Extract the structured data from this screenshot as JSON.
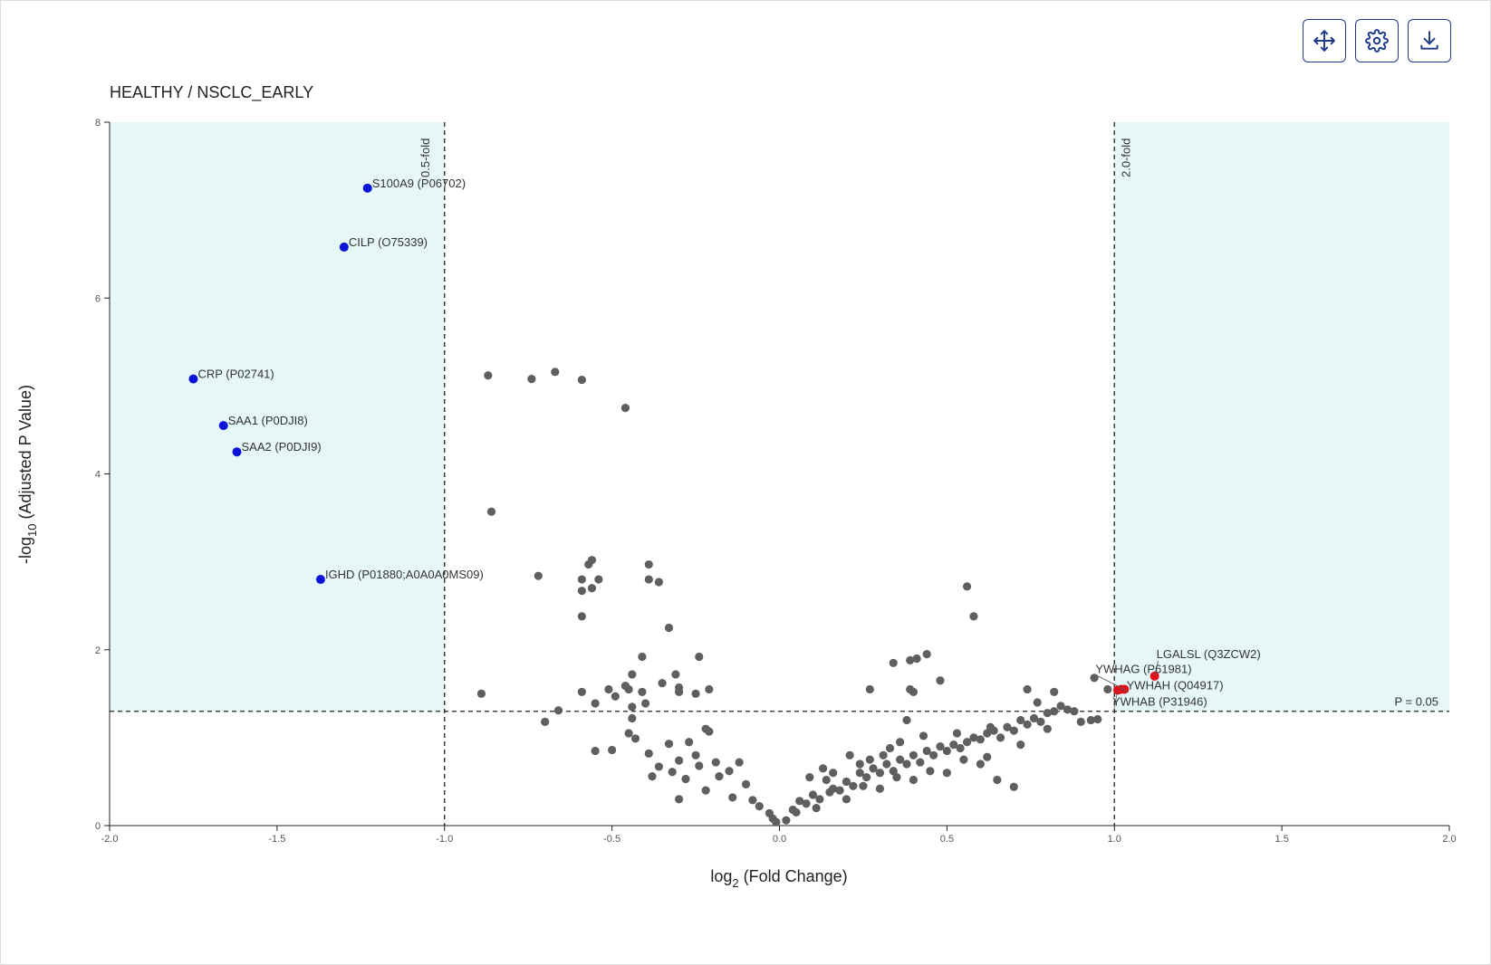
{
  "toolbar": {
    "buttons": [
      {
        "id": "pan",
        "icon": "move-arrows-icon"
      },
      {
        "id": "settings",
        "icon": "gear-icon"
      },
      {
        "id": "download",
        "icon": "download-icon"
      }
    ]
  },
  "colors": {
    "sig_region": "#e6f7f7",
    "grey_point": "#5f5f5f",
    "down_point": "#0a14d8",
    "up_point": "#e3101a"
  },
  "chart_data": {
    "type": "scatter",
    "title": "HEALTHY / NSCLC_EARLY",
    "xlabel_base": "log",
    "xlabel_sub": "2",
    "xlabel_rest": " (Fold Change)",
    "ylabel_base": "-log",
    "ylabel_sub": "10",
    "ylabel_rest": " (Adjusted P Value)",
    "xlim": [
      -2.0,
      2.0
    ],
    "ylim": [
      0,
      8
    ],
    "x_ticks": [
      "-2.0",
      "-1.5",
      "-1.0",
      "-0.5",
      "0.0",
      "0.5",
      "1.0",
      "1.5",
      "2.0"
    ],
    "y_ticks": [
      "0",
      "2",
      "4",
      "6",
      "8"
    ],
    "thresholds": {
      "fold_low": -1.0,
      "fold_high": 1.0,
      "p_line": 1.3,
      "fold_low_label": "0.5-fold",
      "fold_high_label": "2.0-fold",
      "p_label": "P = 0.05"
    },
    "labeled_points": [
      {
        "label": "S100A9 (P06702)",
        "x": -1.23,
        "y": 7.25,
        "group": "down"
      },
      {
        "label": "CILP (O75339)",
        "x": -1.3,
        "y": 6.58,
        "group": "down"
      },
      {
        "label": "CRP (P02741)",
        "x": -1.75,
        "y": 5.08,
        "group": "down"
      },
      {
        "label": "SAA1 (P0DJI8)",
        "x": -1.66,
        "y": 4.55,
        "group": "down"
      },
      {
        "label": "SAA2 (P0DJI9)",
        "x": -1.62,
        "y": 4.25,
        "group": "down"
      },
      {
        "label": "IGHD (P01880;A0A0A0MS09)",
        "x": -1.37,
        "y": 2.8,
        "group": "down"
      },
      {
        "label": "LGALSL (Q3ZCW2)",
        "x": 1.12,
        "y": 1.7,
        "group": "up"
      },
      {
        "label": "YWHAG (P61981)",
        "x": 1.03,
        "y": 1.55,
        "group": "up"
      },
      {
        "label": "YWHAH (Q04917)",
        "x": 1.02,
        "y": 1.55,
        "group": "up"
      },
      {
        "label": "YWHAB (P31946)",
        "x": 1.01,
        "y": 1.54,
        "group": "up"
      }
    ],
    "other_points": [
      [
        -0.87,
        5.12
      ],
      [
        -0.74,
        5.08
      ],
      [
        -0.67,
        5.16
      ],
      [
        -0.59,
        5.07
      ],
      [
        -0.46,
        4.75
      ],
      [
        -0.86,
        3.57
      ],
      [
        -0.56,
        3.02
      ],
      [
        -0.57,
        2.97
      ],
      [
        -0.39,
        2.97
      ],
      [
        -0.72,
        2.84
      ],
      [
        -0.59,
        2.8
      ],
      [
        -0.54,
        2.8
      ],
      [
        -0.39,
        2.8
      ],
      [
        -0.36,
        2.77
      ],
      [
        -0.59,
        2.67
      ],
      [
        -0.56,
        2.7
      ],
      [
        -0.59,
        2.38
      ],
      [
        -0.33,
        2.25
      ],
      [
        -0.41,
        1.92
      ],
      [
        -0.24,
        1.92
      ],
      [
        -0.44,
        1.72
      ],
      [
        -0.31,
        1.72
      ],
      [
        -0.46,
        1.59
      ],
      [
        -0.45,
        1.55
      ],
      [
        -0.41,
        1.52
      ],
      [
        -0.35,
        1.62
      ],
      [
        -0.3,
        1.57
      ],
      [
        -0.51,
        1.55
      ],
      [
        -0.21,
        1.55
      ],
      [
        -0.25,
        1.5
      ],
      [
        -0.3,
        1.52
      ],
      [
        -0.49,
        1.47
      ],
      [
        -0.59,
        1.52
      ],
      [
        -0.89,
        1.5
      ],
      [
        -0.55,
        1.39
      ],
      [
        -0.4,
        1.39
      ],
      [
        -0.66,
        1.31
      ],
      [
        -0.7,
        1.18
      ],
      [
        -0.44,
        1.35
      ],
      [
        -0.44,
        1.22
      ],
      [
        -0.45,
        1.05
      ],
      [
        -0.22,
        1.1
      ],
      [
        -0.21,
        1.07
      ],
      [
        -0.55,
        0.85
      ],
      [
        -0.39,
        0.82
      ],
      [
        -0.43,
        0.99
      ],
      [
        -0.33,
        0.93
      ],
      [
        -0.27,
        0.95
      ],
      [
        -0.5,
        0.86
      ],
      [
        -0.3,
        0.74
      ],
      [
        -0.25,
        0.8
      ],
      [
        -0.36,
        0.67
      ],
      [
        -0.32,
        0.61
      ],
      [
        -0.24,
        0.68
      ],
      [
        -0.19,
        0.72
      ],
      [
        -0.12,
        0.72
      ],
      [
        -0.15,
        0.62
      ],
      [
        -0.38,
        0.56
      ],
      [
        -0.28,
        0.53
      ],
      [
        -0.18,
        0.56
      ],
      [
        -0.1,
        0.47
      ],
      [
        -0.22,
        0.4
      ],
      [
        -0.3,
        0.3
      ],
      [
        -0.14,
        0.32
      ],
      [
        -0.08,
        0.29
      ],
      [
        -0.06,
        0.22
      ],
      [
        -0.03,
        0.14
      ],
      [
        -0.02,
        0.08
      ],
      [
        -0.01,
        0.04
      ],
      [
        0.02,
        0.06
      ],
      [
        0.05,
        0.15
      ],
      [
        0.08,
        0.25
      ],
      [
        0.1,
        0.35
      ],
      [
        0.12,
        0.3
      ],
      [
        0.14,
        0.52
      ],
      [
        0.16,
        0.42
      ],
      [
        0.18,
        0.4
      ],
      [
        0.2,
        0.5
      ],
      [
        0.22,
        0.45
      ],
      [
        0.24,
        0.6
      ],
      [
        0.26,
        0.55
      ],
      [
        0.28,
        0.65
      ],
      [
        0.3,
        0.6
      ],
      [
        0.32,
        0.7
      ],
      [
        0.34,
        0.62
      ],
      [
        0.36,
        0.75
      ],
      [
        0.38,
        0.7
      ],
      [
        0.4,
        0.8
      ],
      [
        0.42,
        0.72
      ],
      [
        0.44,
        0.85
      ],
      [
        0.46,
        0.8
      ],
      [
        0.48,
        0.9
      ],
      [
        0.5,
        0.85
      ],
      [
        0.52,
        0.92
      ],
      [
        0.54,
        0.88
      ],
      [
        0.56,
        0.95
      ],
      [
        0.58,
        1.0
      ],
      [
        0.6,
        0.98
      ],
      [
        0.62,
        1.05
      ],
      [
        0.64,
        1.08
      ],
      [
        0.66,
        1.0
      ],
      [
        0.68,
        1.12
      ],
      [
        0.7,
        1.08
      ],
      [
        0.72,
        1.2
      ],
      [
        0.74,
        1.15
      ],
      [
        0.76,
        1.22
      ],
      [
        0.78,
        1.18
      ],
      [
        0.8,
        1.28
      ],
      [
        0.82,
        1.3
      ],
      [
        0.84,
        1.36
      ],
      [
        0.86,
        1.32
      ],
      [
        0.88,
        1.3
      ],
      [
        0.9,
        1.18
      ],
      [
        0.93,
        1.2
      ],
      [
        0.95,
        1.21
      ],
      [
        0.94,
        1.68
      ],
      [
        0.98,
        1.55
      ],
      [
        0.56,
        2.72
      ],
      [
        0.58,
        2.38
      ],
      [
        0.44,
        1.95
      ],
      [
        0.41,
        1.9
      ],
      [
        0.39,
        1.88
      ],
      [
        0.34,
        1.85
      ],
      [
        0.39,
        1.55
      ],
      [
        0.4,
        1.52
      ],
      [
        0.27,
        1.55
      ],
      [
        0.48,
        1.65
      ],
      [
        0.38,
        1.2
      ],
      [
        0.7,
        0.44
      ],
      [
        0.6,
        0.7
      ],
      [
        0.65,
        0.52
      ],
      [
        0.45,
        0.62
      ],
      [
        0.35,
        0.55
      ],
      [
        0.25,
        0.45
      ],
      [
        0.15,
        0.38
      ],
      [
        0.11,
        0.2
      ],
      [
        0.2,
        0.3
      ],
      [
        0.3,
        0.42
      ],
      [
        0.4,
        0.52
      ],
      [
        0.5,
        0.6
      ],
      [
        0.62,
        0.78
      ],
      [
        0.72,
        0.92
      ],
      [
        0.8,
        1.1
      ],
      [
        0.55,
        0.75
      ],
      [
        0.36,
        0.95
      ],
      [
        0.31,
        0.8
      ],
      [
        0.24,
        0.7
      ],
      [
        0.16,
        0.6
      ],
      [
        0.06,
        0.28
      ],
      [
        0.04,
        0.18
      ],
      [
        0.09,
        0.55
      ],
      [
        0.13,
        0.65
      ],
      [
        0.21,
        0.8
      ],
      [
        0.27,
        0.75
      ],
      [
        0.33,
        0.88
      ],
      [
        0.43,
        1.02
      ],
      [
        0.53,
        1.05
      ],
      [
        0.63,
        1.12
      ],
      [
        0.77,
        1.4
      ],
      [
        0.82,
        1.52
      ],
      [
        0.74,
        1.55
      ]
    ]
  }
}
